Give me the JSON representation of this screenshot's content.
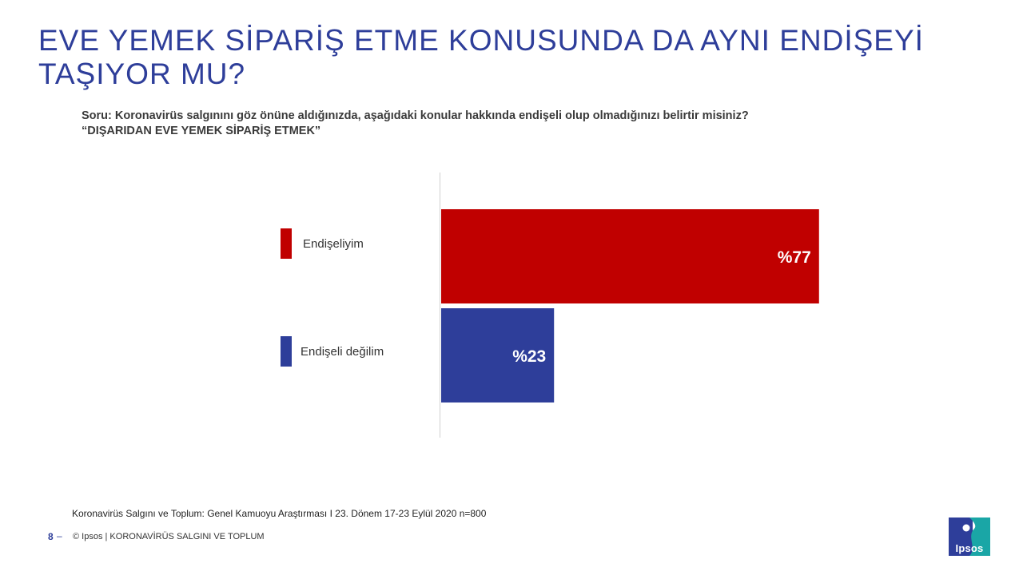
{
  "title": "EVE YEMEK SİPARİŞ ETME KONUSUNDA DA AYNI ENDİŞEYİ TAŞIYOR MU?",
  "question": {
    "line1": "Soru: Koronavirüs salgınını göz önüne aldığınızda, aşağıdaki konular hakkında endişeli olup olmadığınızı belirtir misiniz?",
    "line2": "“DIŞARIDAN EVE YEMEK SİPARİŞ ETMEK”"
  },
  "chart_data": {
    "type": "bar",
    "orientation": "horizontal",
    "categories": [
      "Endişeliyim",
      "Endişeli  değilim"
    ],
    "values": [
      77,
      23
    ],
    "value_labels": [
      "%77",
      "%23"
    ],
    "colors": [
      "#C00000",
      "#2E3E9A"
    ],
    "xlim": [
      0,
      100
    ],
    "title": "",
    "xlabel": "",
    "ylabel": "",
    "grid": false,
    "legend_position": "left"
  },
  "legend": [
    {
      "label": "Endişeliyim",
      "color": "#C00000"
    },
    {
      "label": "Endişeli  değilim",
      "color": "#2E3E9A"
    }
  ],
  "source": "Koronavirüs  Salgını  ve  Toplum:  Genel  Kamuoyu  Araştırması  I   23.  Dönem  17-23  Eylül  2020    n=800",
  "footer": {
    "page_number": "8",
    "page_dash": "–",
    "text": "© Ipsos | KORONAVİRÜS SALGINI VE TOPLUM"
  },
  "logo": {
    "text": "Ipsos",
    "colors": [
      "#2E3E9A",
      "#1AA6A6"
    ]
  }
}
